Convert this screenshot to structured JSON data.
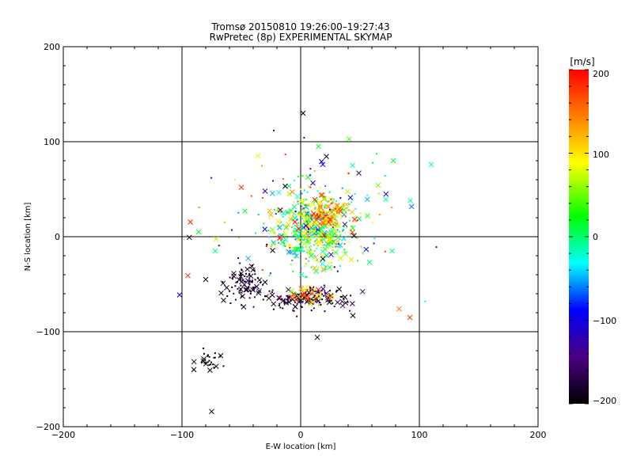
{
  "chart_data": {
    "type": "scatter",
    "title": "Tromsø 20150810 19:26:00–19:27:43",
    "subtitle": "RwPretec (8p) EXPERIMENTAL SKYMAP",
    "xlabel": "E-W location [km]",
    "ylabel": "N-S location [km]",
    "xlim": [
      -200,
      200
    ],
    "ylim": [
      -200,
      200
    ],
    "xticks": [
      "−200",
      "−100",
      "0",
      "100",
      "200"
    ],
    "yticks": [
      "200",
      "100",
      "0",
      "−100",
      "−200"
    ],
    "grid": true,
    "colorbar": {
      "label": "[m/s]",
      "range": [
        -200,
        200
      ],
      "ticks": [
        "200",
        "100",
        "0",
        "−100",
        "−200"
      ],
      "colors": [
        "#000000",
        "#4b0082",
        "#0000ff",
        "#00ffff",
        "#00ff00",
        "#ffff00",
        "#ff8000",
        "#ff0000"
      ]
    },
    "markers": "x and dot",
    "clusters": [
      {
        "cx": 10,
        "cy": 5,
        "sx": 16,
        "sy": 18,
        "n": 420,
        "vmin": -60,
        "vmax": 120
      },
      {
        "cx": 20,
        "cy": 25,
        "sx": 10,
        "sy": 8,
        "n": 120,
        "vmin": 80,
        "vmax": 200
      },
      {
        "cx": 5,
        "cy": -65,
        "sx": 18,
        "sy": 6,
        "n": 140,
        "vmin": -200,
        "vmax": -150
      },
      {
        "cx": 10,
        "cy": -62,
        "sx": 10,
        "sy": 5,
        "n": 50,
        "vmin": 40,
        "vmax": 200
      },
      {
        "cx": -48,
        "cy": -50,
        "sx": 8,
        "sy": 10,
        "n": 90,
        "vmin": -200,
        "vmax": -160
      },
      {
        "cx": -75,
        "cy": -132,
        "sx": 6,
        "sy": 6,
        "n": 28,
        "vmin": -200,
        "vmax": -190
      },
      {
        "cx": 15,
        "cy": 30,
        "sx": 30,
        "sy": 25,
        "n": 120,
        "vmin": -150,
        "vmax": 200
      },
      {
        "cx": 0,
        "cy": 0,
        "sx": 40,
        "sy": 40,
        "n": 50,
        "vmin": -200,
        "vmax": 200
      }
    ],
    "points": [
      {
        "x": 2,
        "y": 130,
        "v": -200,
        "m": "x"
      },
      {
        "x": 15,
        "y": 95,
        "v": 20,
        "m": "x"
      },
      {
        "x": 110,
        "y": 76,
        "v": 0,
        "m": "x"
      },
      {
        "x": 78,
        "y": 80,
        "v": 20,
        "m": "x"
      },
      {
        "x": 92,
        "y": -85,
        "v": 180,
        "m": "x"
      },
      {
        "x": 83,
        "y": -76,
        "v": 150,
        "m": "x"
      },
      {
        "x": 14,
        "y": -106,
        "v": -200,
        "m": "x"
      },
      {
        "x": -95,
        "y": -41,
        "v": 180,
        "m": "x"
      },
      {
        "x": -86,
        "y": 5,
        "v": 20,
        "m": "x"
      },
      {
        "x": -75,
        "y": -184,
        "v": -200,
        "m": "x"
      },
      {
        "x": -80,
        "y": -45,
        "v": -200,
        "m": "x"
      },
      {
        "x": -65,
        "y": -67,
        "v": -200,
        "m": "x"
      },
      {
        "x": 44,
        "y": -83,
        "v": -200,
        "m": "x"
      },
      {
        "x": -47,
        "y": 27,
        "v": 20,
        "m": "x"
      },
      {
        "x": -50,
        "y": 52,
        "v": 180,
        "m": "x"
      },
      {
        "x": -30,
        "y": 48,
        "v": -120,
        "m": "x"
      },
      {
        "x": 77,
        "y": -15,
        "v": 0,
        "m": "x"
      },
      {
        "x": 58,
        "y": -27,
        "v": 0,
        "m": "x"
      },
      {
        "x": 49,
        "y": 67,
        "v": -150,
        "m": "x"
      },
      {
        "x": -72,
        "y": -15,
        "v": 0,
        "m": "x"
      },
      {
        "x": 105,
        "y": -68,
        "v": -30,
        "m": "."
      }
    ]
  }
}
